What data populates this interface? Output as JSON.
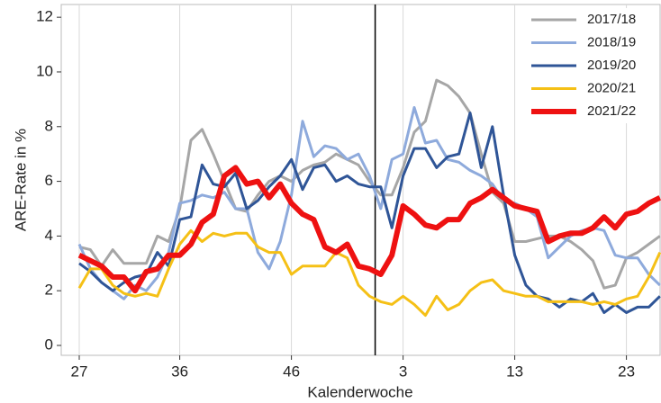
{
  "chart_data": {
    "type": "line",
    "y_label": "ARE-Rate in %",
    "x_label": "Kalenderwoche",
    "categories": [
      "27",
      null,
      null,
      null,
      null,
      null,
      null,
      null,
      null,
      "36",
      null,
      null,
      null,
      null,
      null,
      null,
      null,
      null,
      null,
      "46",
      null,
      null,
      null,
      null,
      null,
      null,
      null,
      null,
      null,
      "3",
      null,
      null,
      null,
      null,
      null,
      null,
      null,
      null,
      null,
      "13",
      null,
      null,
      null,
      null,
      null,
      null,
      null,
      null,
      null,
      "23",
      null,
      null,
      null
    ],
    "ylim": [
      0,
      12.4
    ],
    "yticks": [
      0,
      2,
      4,
      6,
      8,
      10,
      12
    ],
    "grid": true,
    "legend": "upper right",
    "series": [
      {
        "name": "2017/18",
        "color": "#a6a6a6",
        "width": 3,
        "values": [
          3.6,
          3.5,
          2.9,
          3.5,
          3.0,
          3.0,
          3.0,
          4.0,
          3.8,
          5.0,
          7.5,
          7.9,
          7.0,
          6.0,
          5.0,
          4.9,
          5.5,
          6.0,
          6.2,
          6.0,
          6.4,
          6.6,
          6.7,
          7.0,
          6.8,
          6.6,
          6.0,
          5.5,
          5.5,
          6.5,
          7.8,
          8.2,
          9.7,
          9.5,
          9.1,
          8.5,
          7.0,
          5.6,
          5.2,
          3.8,
          3.8,
          3.9,
          4.0,
          4.0,
          3.8,
          3.5,
          3.1,
          2.1,
          2.2,
          3.2,
          3.4,
          3.7,
          4.0
        ]
      },
      {
        "name": "2018/19",
        "color": "#8eaadc",
        "width": 3,
        "values": [
          3.7,
          2.8,
          2.3,
          2.0,
          1.7,
          2.2,
          2.0,
          2.5,
          3.4,
          5.2,
          5.3,
          5.5,
          5.4,
          5.6,
          5.0,
          5.0,
          3.4,
          2.8,
          3.8,
          5.5,
          8.2,
          6.9,
          7.3,
          7.2,
          6.8,
          7.0,
          6.2,
          5.0,
          6.8,
          7.0,
          8.7,
          7.4,
          7.5,
          6.8,
          6.7,
          6.4,
          6.2,
          5.9,
          5.3,
          5.2,
          5.0,
          4.7,
          3.2,
          3.6,
          4.0,
          4.2,
          4.3,
          4.2,
          3.3,
          3.2,
          3.2,
          2.6,
          2.2
        ]
      },
      {
        "name": "2019/20",
        "color": "#2f5597",
        "width": 3,
        "values": [
          3.0,
          2.7,
          2.3,
          2.0,
          2.3,
          2.5,
          2.6,
          3.4,
          2.9,
          4.6,
          4.7,
          6.6,
          5.9,
          5.8,
          6.3,
          5.0,
          5.3,
          5.8,
          6.2,
          6.8,
          5.7,
          6.5,
          6.6,
          6.0,
          6.2,
          5.9,
          5.8,
          5.8,
          4.3,
          6.2,
          7.2,
          7.2,
          6.5,
          6.9,
          7.0,
          8.5,
          6.5,
          8.0,
          5.5,
          3.3,
          2.2,
          1.8,
          1.7,
          1.4,
          1.7,
          1.6,
          1.9,
          1.2,
          1.5,
          1.2,
          1.4,
          1.4,
          1.8
        ]
      },
      {
        "name": "2020/21",
        "color": "#f5c016",
        "width": 3,
        "values": [
          2.1,
          2.8,
          2.8,
          2.2,
          1.9,
          1.8,
          1.9,
          1.8,
          2.8,
          3.7,
          4.2,
          3.8,
          4.1,
          4.0,
          4.1,
          4.1,
          3.6,
          3.4,
          3.4,
          2.6,
          2.9,
          2.9,
          2.9,
          3.4,
          3.2,
          2.2,
          1.8,
          1.6,
          1.5,
          1.8,
          1.5,
          1.1,
          1.8,
          1.3,
          1.5,
          2.0,
          2.3,
          2.4,
          2.0,
          1.9,
          1.8,
          1.8,
          1.6,
          1.6,
          1.6,
          1.6,
          1.5,
          1.6,
          1.5,
          1.7,
          1.8,
          2.5,
          3.4
        ]
      },
      {
        "name": "2021/22",
        "color": "#ee1111",
        "width": 6,
        "values": [
          3.3,
          3.1,
          2.9,
          2.5,
          2.5,
          2.0,
          2.7,
          2.8,
          3.3,
          3.3,
          3.7,
          4.5,
          4.8,
          6.2,
          6.5,
          5.9,
          6.0,
          5.4,
          5.9,
          5.2,
          4.8,
          4.6,
          3.6,
          3.4,
          3.7,
          2.9,
          2.8,
          2.6,
          3.3,
          5.1,
          4.8,
          4.4,
          4.3,
          4.6,
          4.6,
          5.2,
          5.4,
          5.7,
          5.4,
          5.1,
          5.0,
          4.9,
          3.8,
          4.0,
          4.1,
          4.1,
          4.3,
          4.7,
          4.3,
          4.8,
          4.9,
          5.2,
          5.4
        ]
      }
    ]
  }
}
